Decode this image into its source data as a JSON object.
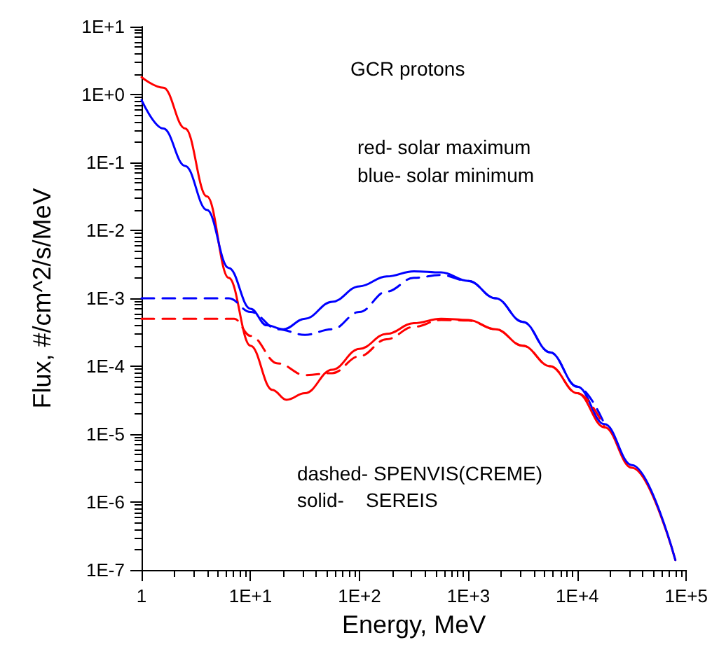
{
  "chart_data": {
    "type": "line",
    "xlabel": "Energy, MeV",
    "ylabel": "Flux, #/cm^2/s/MeV",
    "log": "xy",
    "grid": false,
    "marker": "none",
    "xlim": [
      1,
      100000
    ],
    "ylim": [
      1e-07,
      10
    ],
    "xticks": [
      1,
      {
        "value": 10,
        "label": "1E+1"
      },
      {
        "value": 100,
        "label": "1E+2"
      },
      {
        "value": 1000,
        "label": "1E+3"
      },
      {
        "value": 10000,
        "label": "1E+4"
      },
      {
        "value": 100000,
        "label": "1E+5"
      }
    ],
    "yticks": [
      {
        "value": 1e-07,
        "label": "1E-7"
      },
      {
        "value": 1e-06,
        "label": "1E-6"
      },
      {
        "value": 1e-05,
        "label": "1E-5"
      },
      {
        "value": 0.0001,
        "label": "1E-4"
      },
      {
        "value": 0.001,
        "label": "1E-3"
      },
      {
        "value": 0.01,
        "label": "1E-2"
      },
      {
        "value": 0.1,
        "label": "1E-1"
      },
      {
        "value": 1,
        "label": "1E+0"
      },
      {
        "value": 10,
        "label": "1E+1"
      }
    ],
    "annotations": [
      "GCR protons",
      "red- solar maximum",
      "blue- solar minimum",
      "dashed- SPENVIS(CREME)",
      "solid-    SEREIS"
    ],
    "series": [
      {
        "color": "#ff0000",
        "line_style": "solid",
        "x": [
          1,
          1.585,
          2.512,
          3.981,
          6.31,
          10,
          15.85,
          21.4,
          31.6,
          56.2,
          100,
          178,
          316,
          562,
          1000,
          1778,
          3162,
          5623,
          10000,
          17783,
          31623,
          79433
        ],
        "values": [
          1.8,
          1.26,
          0.316,
          0.0316,
          0.002,
          0.0002,
          4.5e-05,
          3.2e-05,
          4e-05,
          8.9e-05,
          0.00018,
          0.0003,
          0.00043,
          0.0005,
          0.00048,
          0.00035,
          0.0002,
          0.0001,
          4e-05,
          1.26e-05,
          3.2e-06,
          1.4e-07
        ]
      },
      {
        "color": "#0000ff",
        "line_style": "solid",
        "x": [
          1,
          1.585,
          2.512,
          3.981,
          6.31,
          10,
          14.1,
          20,
          31.6,
          56.2,
          100,
          178,
          316,
          562,
          1000,
          1778,
          3162,
          5623,
          10000,
          17783,
          31623,
          79433
        ],
        "values": [
          0.83,
          0.316,
          0.089,
          0.02,
          0.0028,
          0.0007,
          0.0004,
          0.00035,
          0.0005,
          0.00089,
          0.0015,
          0.0021,
          0.0025,
          0.0024,
          0.0018,
          0.001,
          0.00045,
          0.00016,
          5e-05,
          1.4e-05,
          3.5e-06,
          1.4e-07
        ]
      },
      {
        "color": "#0000ff",
        "line_style": "dashed",
        "x": [
          1,
          6.31,
          10,
          17.8,
          31.6,
          56.2,
          100,
          178,
          316,
          562,
          1000,
          1778,
          3162,
          5623,
          10000,
          17783
        ],
        "values": [
          0.001,
          0.001,
          0.00063,
          0.00035,
          0.00029,
          0.00035,
          0.00063,
          0.00126,
          0.002,
          0.0022,
          0.0018,
          0.001,
          0.00045,
          0.00016,
          5e-05,
          1.4e-05
        ]
      },
      {
        "color": "#ff0000",
        "line_style": "dashed",
        "x": [
          1,
          7.08,
          10,
          17.8,
          31.6,
          56.2,
          100,
          178,
          316,
          562,
          1000,
          1778,
          3162,
          5623,
          10000,
          17783
        ],
        "values": [
          0.0005,
          0.0005,
          0.00028,
          0.00011,
          7.4e-05,
          7.9e-05,
          0.00014,
          0.00025,
          0.00038,
          0.00048,
          0.00047,
          0.00035,
          0.0002,
          0.0001,
          4e-05,
          1.26e-05
        ]
      }
    ]
  }
}
